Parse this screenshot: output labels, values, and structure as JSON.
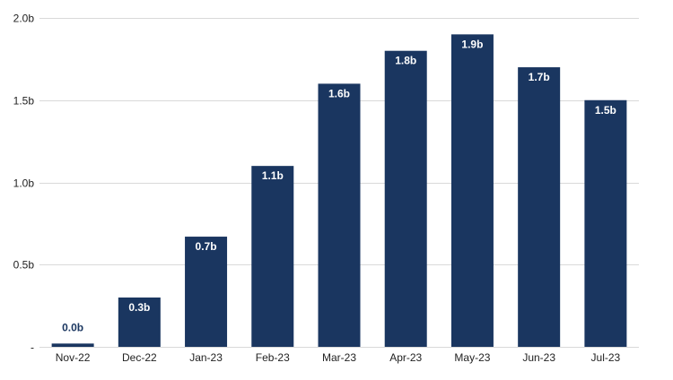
{
  "chart_data": {
    "type": "bar",
    "title": "",
    "xlabel": "",
    "ylabel": "",
    "categories": [
      "Nov-22",
      "Dec-22",
      "Jan-23",
      "Feb-23",
      "Mar-23",
      "Apr-23",
      "May-23",
      "Jun-23",
      "Jul-23"
    ],
    "values": [
      0.02,
      0.3,
      0.67,
      1.1,
      1.6,
      1.8,
      1.9,
      1.7,
      1.5
    ],
    "value_labels": [
      "0.0b",
      "0.3b",
      "0.7b",
      "1.1b",
      "1.6b",
      "1.8b",
      "1.9b",
      "1.7b",
      "1.5b"
    ],
    "ylim": [
      0,
      2.0
    ],
    "y_ticks": [
      0,
      0.5,
      1.0,
      1.5,
      2.0
    ],
    "y_tick_labels": [
      "-",
      "0.5b",
      "1.0b",
      "1.5b",
      "2.0b"
    ],
    "grid": true,
    "legend": "none",
    "colors": {
      "bar": "#1a3660",
      "label_inside": "#ffffff",
      "label_outside": "#1a3660",
      "grid": "#d9d9d9",
      "axis_text": "#222222"
    }
  }
}
